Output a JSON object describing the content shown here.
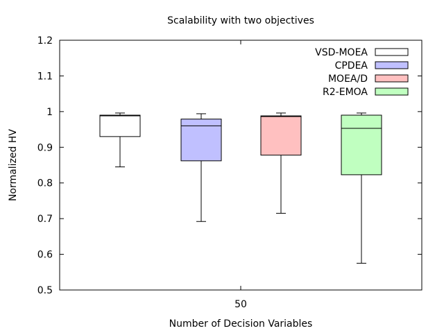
{
  "chart_data": {
    "type": "box",
    "title": "Scalability with two objectives",
    "xlabel": "Number of Decision Variables",
    "ylabel": "Normalized HV",
    "ylim": [
      0.5,
      1.2
    ],
    "yticks": [
      "0.5",
      "0.6",
      "0.7",
      "0.8",
      "0.9",
      "1",
      "1.1",
      "1.2"
    ],
    "categories": [
      "50"
    ],
    "legend_position": "top-right",
    "grid": false,
    "series": [
      {
        "name": "VSD-MOEA",
        "color": "#ffffff",
        "min": 0.845,
        "q1": 0.93,
        "median": 0.988,
        "q3": 0.99,
        "max": 0.996
      },
      {
        "name": "CPDEA",
        "color": "#c0c0ff",
        "min": 0.692,
        "q1": 0.862,
        "median": 0.96,
        "q3": 0.979,
        "max": 0.994
      },
      {
        "name": "MOEA/D",
        "color": "#ffc0c0",
        "min": 0.715,
        "q1": 0.878,
        "median": 0.986,
        "q3": 0.988,
        "max": 0.996
      },
      {
        "name": "R2-EMOA",
        "color": "#c0ffc0",
        "min": 0.575,
        "q1": 0.823,
        "median": 0.953,
        "q3": 0.99,
        "max": 0.996
      }
    ]
  }
}
